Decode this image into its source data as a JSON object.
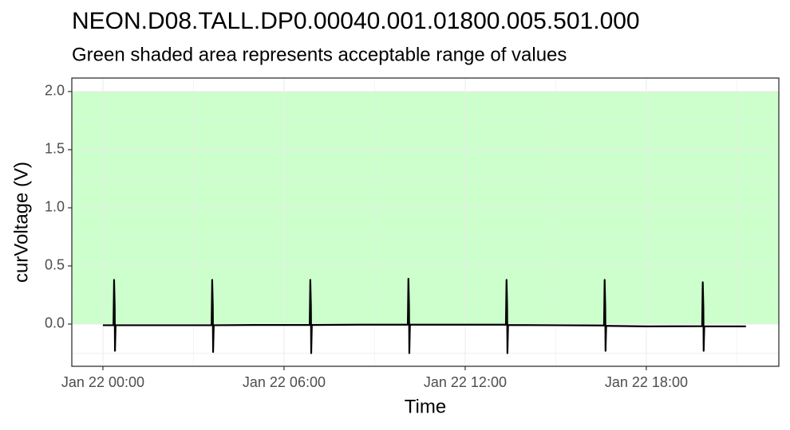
{
  "chart_data": {
    "type": "line",
    "title": "NEON.D08.TALL.DP0.00040.001.01800.005.501.000",
    "subtitle": "Green shaded area represents acceptable range of values",
    "x_label": "Time",
    "y_label": "curVoltage (V)",
    "band": [
      0,
      2
    ],
    "band_color": "#ccffcc",
    "grid": true,
    "xlim": [
      -1.03,
      22.39
    ],
    "ylim": [
      -0.363,
      2.116
    ],
    "xticks": [
      {
        "value": 0,
        "label": "Jan 22 00:00"
      },
      {
        "value": 6,
        "label": "Jan 22 06:00"
      },
      {
        "value": 12,
        "label": "Jan 22 12:00"
      },
      {
        "value": 18,
        "label": "Jan 22 18:00"
      }
    ],
    "yticks": [
      {
        "value": 0,
        "label": "0.0"
      },
      {
        "value": 0.5,
        "label": "0.5"
      },
      {
        "value": 1,
        "label": "1.0"
      },
      {
        "value": 1.5,
        "label": "1.5"
      },
      {
        "value": 2,
        "label": "2.0"
      }
    ],
    "series": [
      {
        "color": "#000000",
        "x": [
          0,
          0.35,
          0.37,
          0.39,
          0.4,
          0.42,
          2,
          3.6,
          3.62,
          3.64,
          3.65,
          3.67,
          5,
          6.85,
          6.87,
          6.89,
          6.9,
          6.92,
          8.5,
          10.1,
          10.12,
          10.14,
          10.15,
          10.17,
          11.5,
          13.35,
          13.37,
          13.39,
          13.4,
          13.42,
          15,
          16.6,
          16.62,
          16.64,
          16.65,
          16.67,
          18,
          19.85,
          19.87,
          19.89,
          19.9,
          19.92,
          21.3
        ],
        "values": [
          -0.01,
          -0.01,
          0.38,
          0.15,
          -0.23,
          -0.01,
          -0.01,
          -0.01,
          0.38,
          0.15,
          -0.24,
          -0.01,
          -0.008,
          -0.008,
          0.38,
          0.15,
          -0.25,
          -0.008,
          -0.005,
          -0.005,
          0.39,
          0.15,
          -0.25,
          -0.005,
          -0.005,
          -0.005,
          0.38,
          0.15,
          -0.25,
          -0.008,
          -0.01,
          -0.012,
          0.38,
          0.15,
          -0.23,
          -0.015,
          -0.02,
          -0.018,
          0.36,
          0.14,
          -0.23,
          -0.02,
          -0.02
        ]
      }
    ]
  }
}
